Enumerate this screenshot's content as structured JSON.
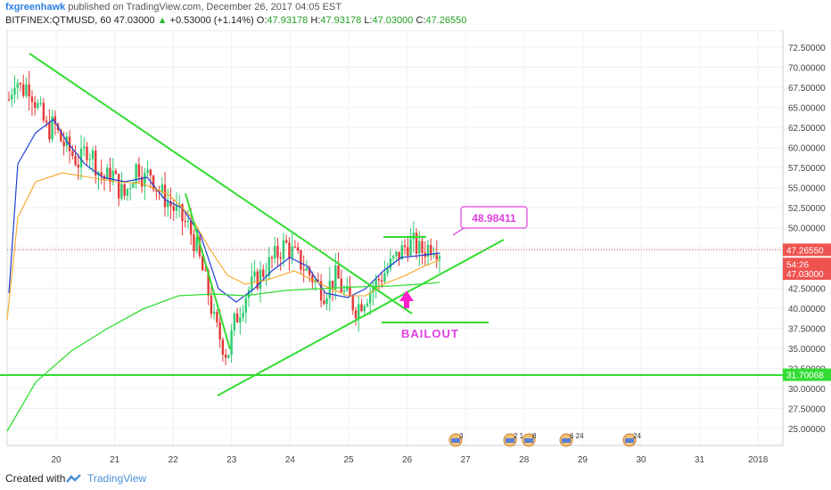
{
  "header": {
    "author": "fxgreenhawk",
    "published": "published on TradingView.com, December 26, 2017 04:05 EST",
    "symbol": "BITFINEX:QTMUSD, 60",
    "last": "47.03000",
    "change_arrow": "▲",
    "change": "+0.53000 (+1.14%)",
    "o_label": "O:",
    "o_value": "47.93178",
    "h_label": "H:",
    "h_value": "47.93178",
    "l_label": "L:",
    "l_value": "47.03000",
    "c_label": "C:",
    "c_value": "47.26550"
  },
  "footer": {
    "created_with": "Created with",
    "brand": "TradingView"
  },
  "chart_data": {
    "type": "candlestick",
    "ylim": [
      22.5,
      73.5
    ],
    "xlim": [
      19.3,
      2018.2
    ],
    "y_ticks": [
      "25.00000",
      "27.50000",
      "30.00000",
      "32.50000",
      "35.00000",
      "37.50000",
      "40.00000",
      "42.50000",
      "45.00000",
      "47.50000",
      "50.00000",
      "52.50000",
      "55.00000",
      "57.50000",
      "60.00000",
      "62.50000",
      "65.00000",
      "67.50000",
      "70.00000",
      "72.50000"
    ],
    "x_tick_labels": [
      "20",
      "21",
      "22",
      "23",
      "24",
      "25",
      "26",
      "27",
      "28",
      "29",
      "30",
      "31",
      "2018"
    ],
    "annotations": {
      "price_box": "48.98411",
      "bailout": "BAILOUT"
    },
    "price_tags": [
      {
        "label": "47.26550",
        "value": 47.2655,
        "color": "#ef5350"
      },
      {
        "label": "54:26",
        "value": 45.5,
        "color": "#ef5350"
      },
      {
        "label": "47.03000",
        "value": 44.3,
        "color": "#ef5350"
      },
      {
        "label": "31.70068",
        "value": 31.7,
        "color": "#33dd33"
      }
    ],
    "ohlc_close_path": [
      66,
      69,
      67,
      68,
      66,
      64,
      62,
      63,
      61,
      60,
      59,
      58,
      60,
      59,
      57,
      56,
      57,
      55,
      54,
      56,
      58,
      56,
      57,
      55,
      54,
      53,
      52,
      51,
      50,
      48,
      45,
      42,
      38,
      36,
      34,
      38,
      40,
      42,
      43,
      44,
      45,
      46,
      47,
      48,
      47,
      46,
      45,
      44,
      43,
      42,
      43,
      44,
      42,
      41,
      40,
      41,
      42,
      43,
      44,
      45,
      46,
      47,
      48,
      48,
      47,
      47.5,
      48,
      47.2
    ],
    "lines": [
      {
        "name": "",
        "color": "#33dd33"
      },
      {
        "name": "",
        "color": "#33dd33"
      },
      {
        "name": "",
        "color": "#33dd33"
      }
    ],
    "event_markers": [
      "3",
      "2 1",
      "8",
      "6 24",
      "24"
    ]
  }
}
